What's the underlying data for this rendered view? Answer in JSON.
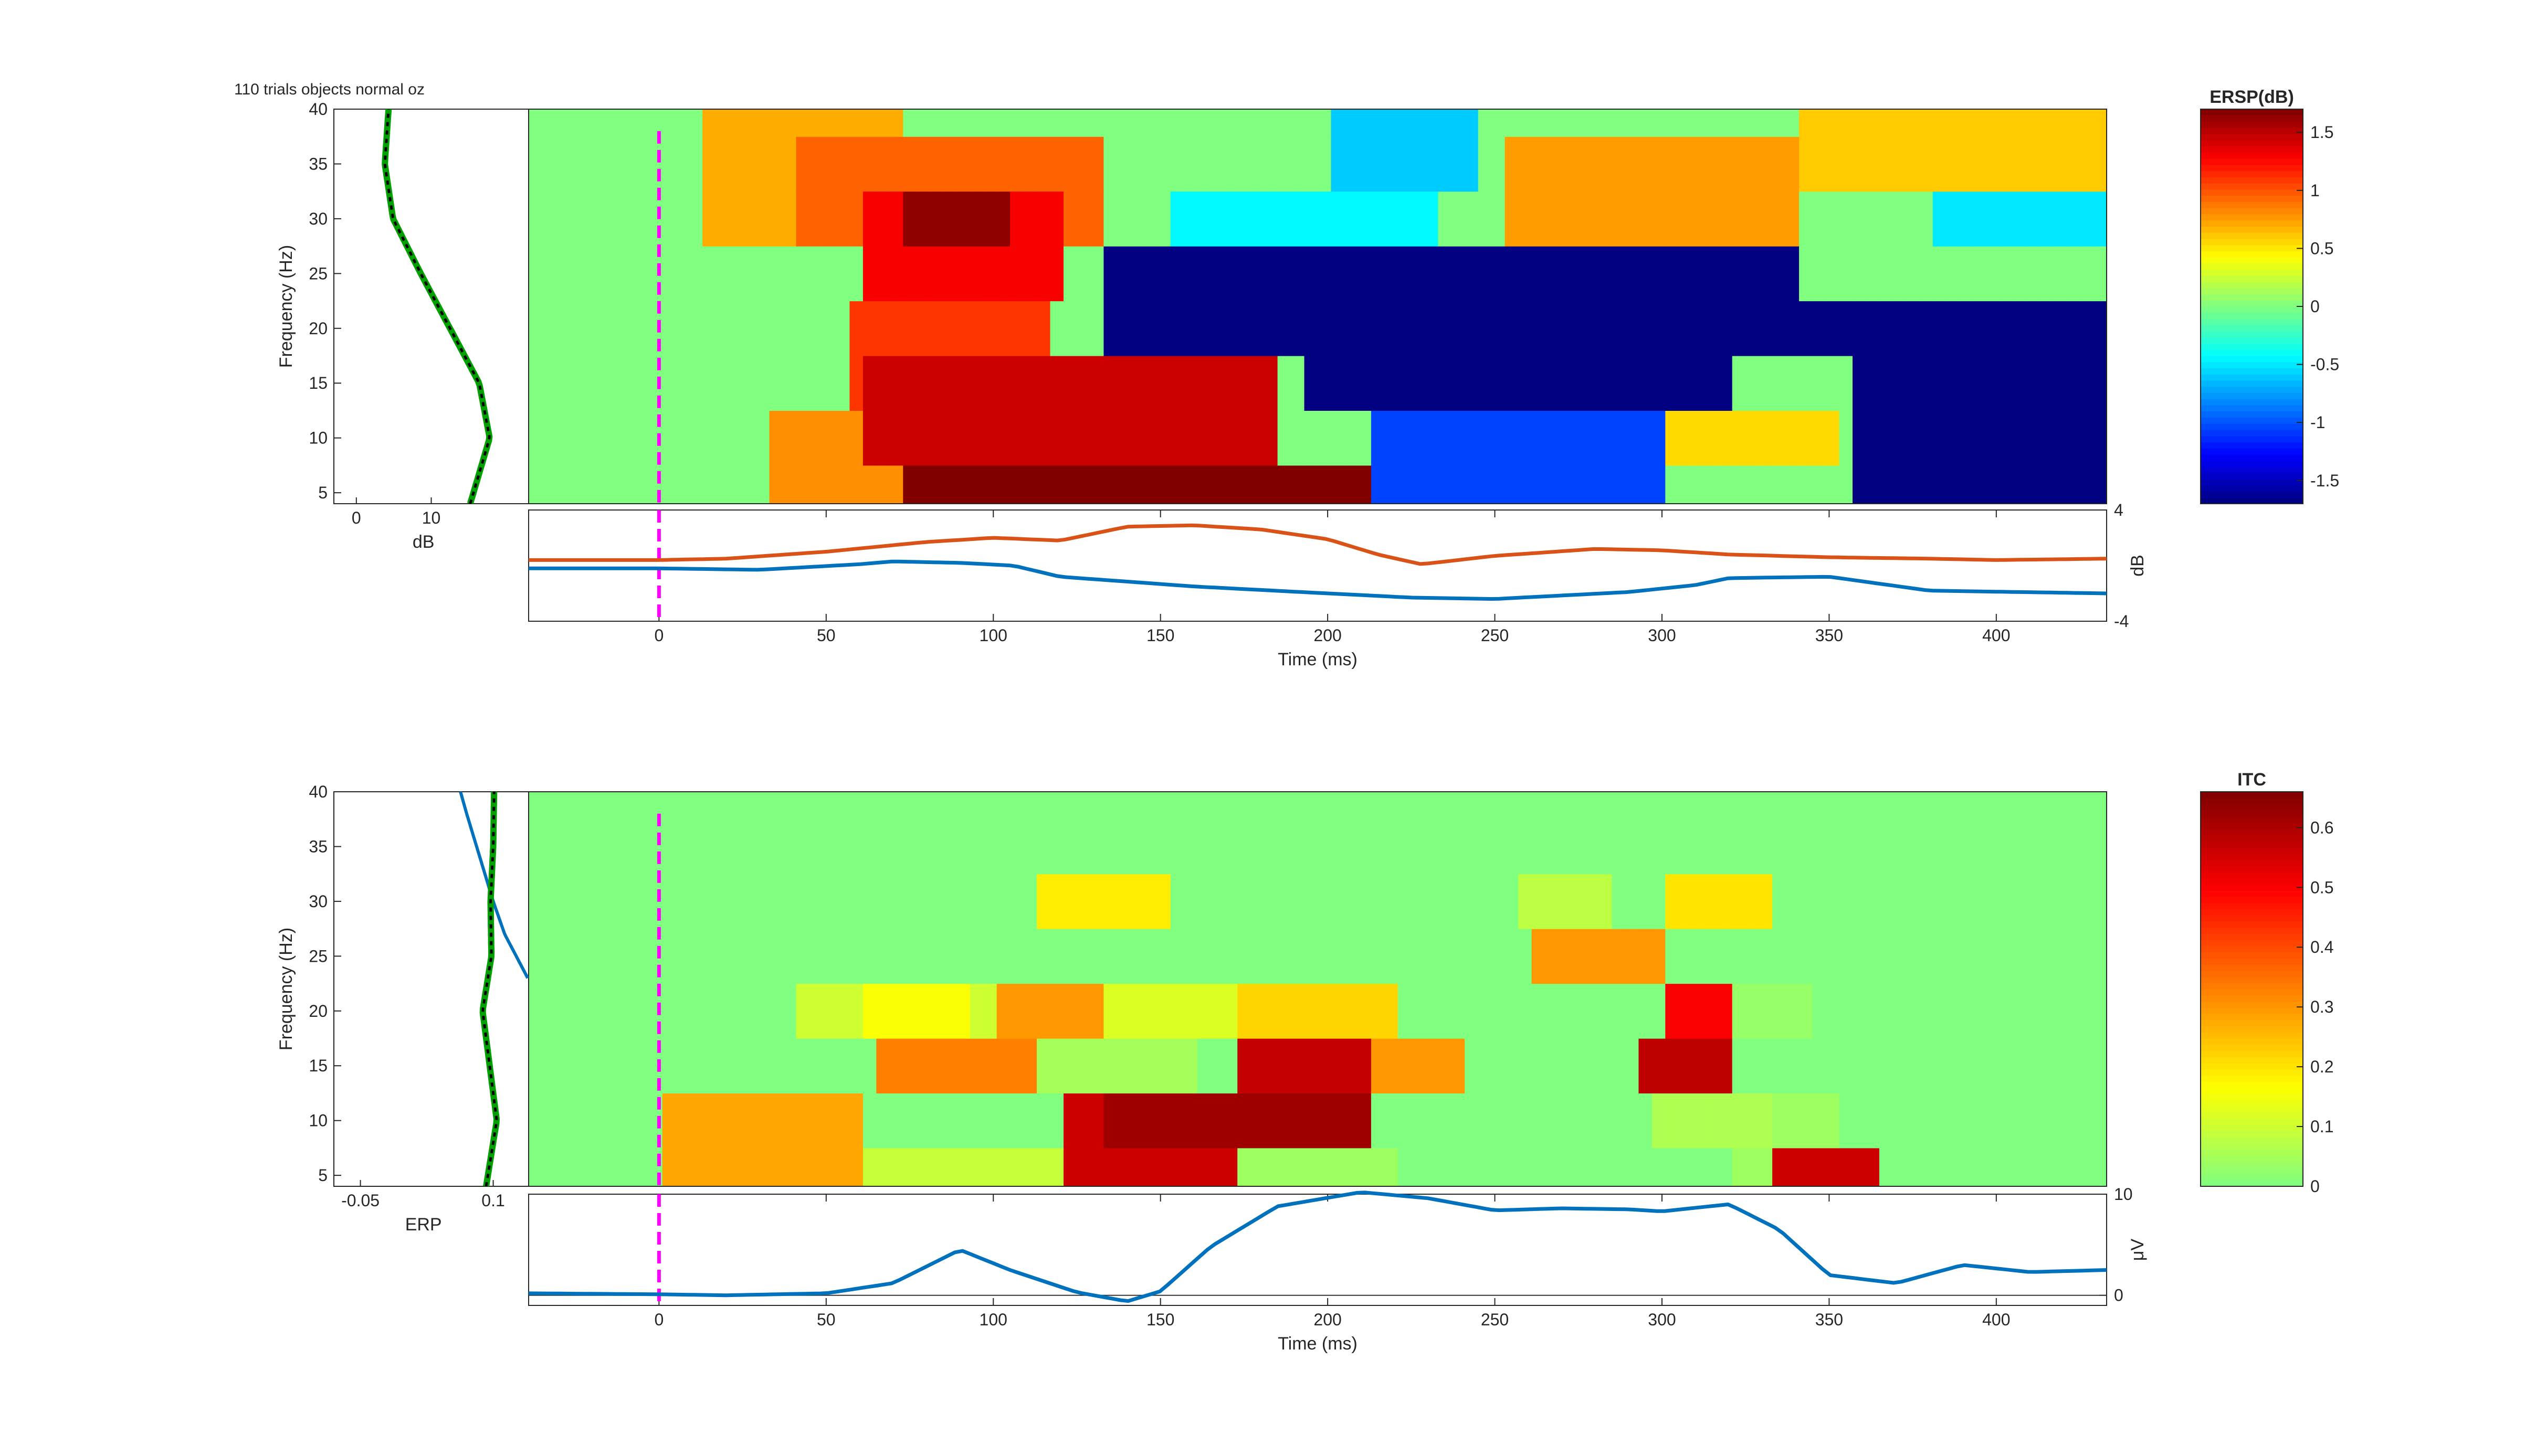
{
  "figure": {
    "title": "110 trials objects normal oz"
  },
  "colors": {
    "axis": "#262626",
    "stim_marker": "#ff00ff",
    "trace_blue": "#0072bd",
    "trace_orange": "#d95319",
    "spectrum_green": "#00a000",
    "spectrum_black": "#000000",
    "erp_mean": "#333333"
  },
  "chart_data": [
    {
      "id": "ersp",
      "type": "heatmap",
      "title": "",
      "xlabel": "Time (ms)",
      "ylabel": "Frequency (Hz)",
      "xlim": [
        -39,
        433
      ],
      "ylim": [
        4,
        40
      ],
      "x_ticks": [
        0,
        50,
        100,
        150,
        200,
        250,
        300,
        350,
        400
      ],
      "y_ticks": [
        5,
        10,
        15,
        20,
        25,
        30,
        35,
        40
      ],
      "freq_rows": [
        5,
        10,
        15,
        20,
        25,
        30,
        35,
        40
      ],
      "time_start": -39,
      "time_step": 4,
      "z_range": [
        -1.7,
        1.7
      ],
      "regions": [
        {
          "t0": 10,
          "t1": 70,
          "f0": 30,
          "f1": 40,
          "v": 0.7
        },
        {
          "t0": 40,
          "t1": 130,
          "f0": 26,
          "f1": 38,
          "v": 0.95
        },
        {
          "t0": 60,
          "t1": 120,
          "f0": 23,
          "f1": 33,
          "v": 1.3
        },
        {
          "t0": 70,
          "t1": 105,
          "f0": 26,
          "f1": 30,
          "v": 1.65
        },
        {
          "t0": 55,
          "t1": 115,
          "f0": 13,
          "f1": 24,
          "v": 1.1
        },
        {
          "t0": 30,
          "t1": 80,
          "f0": 4,
          "f1": 13,
          "v": 0.8
        },
        {
          "t0": 60,
          "t1": 185,
          "f0": 7,
          "f1": 16,
          "v": 1.45
        },
        {
          "t0": 70,
          "t1": 210,
          "f0": 4,
          "f1": 8,
          "v": 1.75
        },
        {
          "t0": 130,
          "t1": 340,
          "f0": 17,
          "f1": 26,
          "v": -1.9
        },
        {
          "t0": 140,
          "t1": 440,
          "f0": 17,
          "f1": 23,
          "v": -2.2
        },
        {
          "t0": 190,
          "t1": 320,
          "f0": 11,
          "f1": 18,
          "v": -2.0
        },
        {
          "t0": 355,
          "t1": 440,
          "f0": 4,
          "f1": 18,
          "v": -2.1
        },
        {
          "t0": 210,
          "t1": 300,
          "f0": 4,
          "f1": 12,
          "v": -1.05
        },
        {
          "t0": 300,
          "t1": 350,
          "f0": 6,
          "f1": 12,
          "v": 0.55
        },
        {
          "t0": 200,
          "t1": 245,
          "f0": 32,
          "f1": 40,
          "v": -0.6
        },
        {
          "t0": 150,
          "t1": 230,
          "f0": 28,
          "f1": 32,
          "v": -0.45
        },
        {
          "t0": 250,
          "t1": 340,
          "f0": 28,
          "f1": 38,
          "v": 0.75
        },
        {
          "t0": 340,
          "t1": 440,
          "f0": 32,
          "f1": 40,
          "v": 0.6
        },
        {
          "t0": 380,
          "t1": 440,
          "f0": 26,
          "f1": 30,
          "v": -0.5
        }
      ],
      "cbar_title": "ERSP(dB)",
      "cbar_ticks": [
        -1.5,
        -1,
        -0.5,
        0,
        0.5,
        1,
        1.5
      ],
      "spectrum": {
        "xlabel": "dB",
        "x_ticks": [
          0,
          10
        ],
        "xlim": [
          -3,
          23
        ],
        "freqs": [
          4,
          10,
          15,
          20,
          25,
          30,
          35,
          40
        ],
        "values": [
          15.2,
          17.8,
          16.4,
          12.5,
          8.6,
          4.9,
          3.8,
          4.3
        ]
      },
      "trace": {
        "ylabel": "dB",
        "ylim": [
          -4,
          4
        ],
        "y_ticks": [
          -4,
          4
        ],
        "upper": {
          "t": [
            -39,
            0,
            20,
            50,
            80,
            100,
            120,
            140,
            160,
            180,
            200,
            215,
            228,
            250,
            280,
            300,
            320,
            350,
            380,
            400,
            433
          ],
          "v": [
            0.4,
            0.4,
            0.5,
            1.0,
            1.7,
            2.0,
            1.8,
            2.8,
            2.9,
            2.6,
            1.9,
            0.8,
            0.1,
            0.7,
            1.2,
            1.1,
            0.8,
            0.6,
            0.5,
            0.4,
            0.5
          ]
        },
        "lower": {
          "t": [
            -39,
            0,
            30,
            60,
            70,
            90,
            106,
            120,
            160,
            200,
            225,
            250,
            290,
            310,
            320,
            350,
            380,
            433
          ],
          "v": [
            -0.2,
            -0.2,
            -0.3,
            0.1,
            0.3,
            0.2,
            0.0,
            -0.8,
            -1.5,
            -2.0,
            -2.3,
            -2.4,
            -1.9,
            -1.4,
            -0.9,
            -0.8,
            -1.8,
            -2.0
          ]
        }
      }
    },
    {
      "id": "itc",
      "type": "heatmap",
      "title": "",
      "xlabel": "Time (ms)",
      "ylabel": "Frequency (Hz)",
      "xlim": [
        -39,
        433
      ],
      "ylim": [
        4,
        40
      ],
      "x_ticks": [
        0,
        50,
        100,
        150,
        200,
        250,
        300,
        350,
        400
      ],
      "y_ticks": [
        5,
        10,
        15,
        20,
        25,
        30,
        35,
        40
      ],
      "freq_rows": [
        5,
        10,
        15,
        20,
        25,
        30,
        35,
        40
      ],
      "time_start": -39,
      "time_step": 4,
      "z_range": [
        0,
        0.66
      ],
      "regions": [
        {
          "t0": 0,
          "t1": 60,
          "f0": 4,
          "f1": 12,
          "v": 0.28
        },
        {
          "t0": 60,
          "t1": 120,
          "f0": 4,
          "f1": 8,
          "v": 0.09
        },
        {
          "t0": 120,
          "t1": 170,
          "f0": 4,
          "f1": 10,
          "v": 0.56
        },
        {
          "t0": 130,
          "t1": 210,
          "f0": 8,
          "f1": 12,
          "v": 0.62
        },
        {
          "t0": 170,
          "t1": 220,
          "f0": 4,
          "f1": 8,
          "v": 0.04
        },
        {
          "t0": 170,
          "t1": 210,
          "f0": 12,
          "f1": 16,
          "v": 0.57
        },
        {
          "t0": 210,
          "t1": 240,
          "f0": 12,
          "f1": 16,
          "v": 0.3
        },
        {
          "t0": 110,
          "t1": 160,
          "f0": 12,
          "f1": 16,
          "v": 0.05
        },
        {
          "t0": 65,
          "t1": 110,
          "f0": 12,
          "f1": 16,
          "v": 0.33
        },
        {
          "t0": 100,
          "t1": 130,
          "f0": 16,
          "f1": 20,
          "v": 0.3
        },
        {
          "t0": 130,
          "t1": 170,
          "f0": 16,
          "f1": 20,
          "v": 0.12
        },
        {
          "t0": 170,
          "t1": 220,
          "f0": 16,
          "f1": 20,
          "v": 0.22
        },
        {
          "t0": 40,
          "t1": 100,
          "f0": 16,
          "f1": 20,
          "v": 0.1
        },
        {
          "t0": 60,
          "t1": 90,
          "f0": 20,
          "f1": 24,
          "v": 0.16
        },
        {
          "t0": 110,
          "t1": 150,
          "f0": 26,
          "f1": 30,
          "v": 0.19
        },
        {
          "t0": 290,
          "t1": 320,
          "f0": 12,
          "f1": 18,
          "v": 0.58
        },
        {
          "t0": 320,
          "t1": 350,
          "f0": 4,
          "f1": 14,
          "v": 0.04
        },
        {
          "t0": 330,
          "t1": 365,
          "f0": 4,
          "f1": 8,
          "v": 0.56
        },
        {
          "t0": 300,
          "t1": 330,
          "f0": 20,
          "f1": 24,
          "v": 0.5
        },
        {
          "t0": 295,
          "t1": 330,
          "f0": 7,
          "f1": 12,
          "v": 0.06
        },
        {
          "t0": 260,
          "t1": 300,
          "f0": 22,
          "f1": 26,
          "v": 0.3
        },
        {
          "t0": 320,
          "t1": 345,
          "f0": 16,
          "f1": 22,
          "v": 0.03
        },
        {
          "t0": 255,
          "t1": 285,
          "f0": 26,
          "f1": 30,
          "v": 0.08
        },
        {
          "t0": 300,
          "t1": 330,
          "f0": 26,
          "f1": 30,
          "v": 0.2
        }
      ],
      "cbar_title": "ITC",
      "cbar_ticks": [
        0,
        0.1,
        0.2,
        0.3,
        0.4,
        0.5,
        0.6
      ],
      "spectrum": {
        "xlabel": "ERP",
        "x_ticks": [
          -0.05,
          0.1
        ],
        "xlim": [
          -0.08,
          0.14
        ],
        "freqs": [
          4,
          10,
          15,
          20,
          25,
          30,
          35,
          40
        ],
        "values": [
          0.092,
          0.104,
          0.096,
          0.088,
          0.098,
          0.097,
          0.1,
          0.101
        ],
        "erp_mean": {
          "freqs": [
            23,
            27,
            30,
            34,
            38,
            40
          ],
          "values": [
            0.139,
            0.113,
            0.1,
            0.085,
            0.07,
            0.063
          ]
        }
      },
      "trace": {
        "ylabel": "μV",
        "ylim": [
          -1,
          10
        ],
        "y_ticks": [
          0,
          10
        ],
        "zero_line": 0,
        "line": {
          "t": [
            -39,
            0,
            20,
            50,
            70,
            90,
            105,
            125,
            140,
            150,
            165,
            185,
            210,
            230,
            250,
            270,
            290,
            300,
            320,
            335,
            350,
            370,
            390,
            410,
            433
          ],
          "v": [
            0.2,
            0.1,
            0.0,
            0.2,
            1.2,
            4.5,
            2.5,
            0.3,
            -0.6,
            0.4,
            4.8,
            8.8,
            10.2,
            9.6,
            8.4,
            8.6,
            8.5,
            8.3,
            9.0,
            6.5,
            2.0,
            1.2,
            3.0,
            2.3,
            2.5
          ]
        }
      }
    }
  ]
}
